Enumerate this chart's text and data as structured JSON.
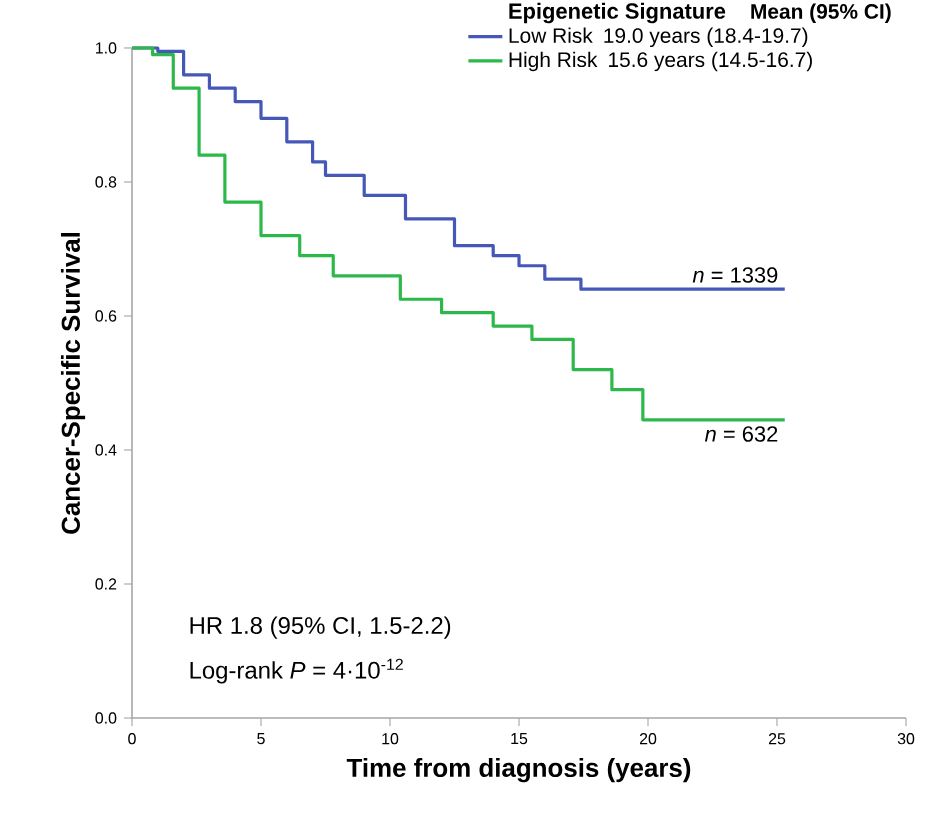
{
  "chart_data": {
    "type": "step",
    "xlabel": "Time from diagnosis (years)",
    "ylabel": "Cancer-Specific Survival",
    "legend_title": "Epigenetic Signature",
    "legend": "top right",
    "xlim": [
      0,
      30
    ],
    "ylim": [
      0,
      1
    ],
    "xticks": [
      0,
      5,
      10,
      15,
      20,
      25,
      30
    ],
    "yticks": [
      {
        "value": 0,
        "label": "0.0"
      },
      {
        "value": 0.2,
        "label": "0.2"
      },
      {
        "value": 0.4,
        "label": "0.4"
      },
      {
        "value": 0.6,
        "label": "0.6"
      },
      {
        "value": 0.8,
        "label": "0.8"
      },
      {
        "value": 1,
        "label": "1.0"
      }
    ],
    "grid": false,
    "line_style": "solid",
    "series": [
      {
        "name": "Low Risk",
        "color": "#4558b8",
        "x": [
          0,
          1,
          2,
          3,
          4,
          5,
          6,
          7,
          7.5,
          9,
          10.6,
          12.5,
          14,
          15,
          16,
          17.4,
          25.3
        ],
        "values": [
          1,
          0.995,
          0.96,
          0.94,
          0.92,
          0.895,
          0.86,
          0.83,
          0.81,
          0.78,
          0.745,
          0.705,
          0.69,
          0.675,
          0.655,
          0.64,
          0.64
        ]
      },
      {
        "name": "High Risk",
        "color": "#2db84a",
        "x": [
          0,
          0.8,
          1.6,
          2.6,
          3.6,
          5,
          6.5,
          7.8,
          10.4,
          12,
          14,
          15.5,
          17.1,
          18.6,
          19.8,
          25.3
        ],
        "values": [
          1,
          0.99,
          0.94,
          0.84,
          0.77,
          0.72,
          0.69,
          0.66,
          0.625,
          0.605,
          0.585,
          0.565,
          0.52,
          0.49,
          0.445,
          0.445
        ]
      }
    ],
    "annotations": [
      "Mean (95% CI)",
      "19.0 years (18.4-19.7)",
      "15.6 years (14.5-16.7)",
      {
        "text": "*n* = 1339",
        "x": 25.3,
        "y": 0.64
      },
      {
        "text": "*n* = 632",
        "x": 25.3,
        "y": 0.445
      },
      "HR 1.8 (95% CI, 1.5-2.2)",
      "Log-rank *P* = 4·10$^{-12}$"
    ]
  }
}
